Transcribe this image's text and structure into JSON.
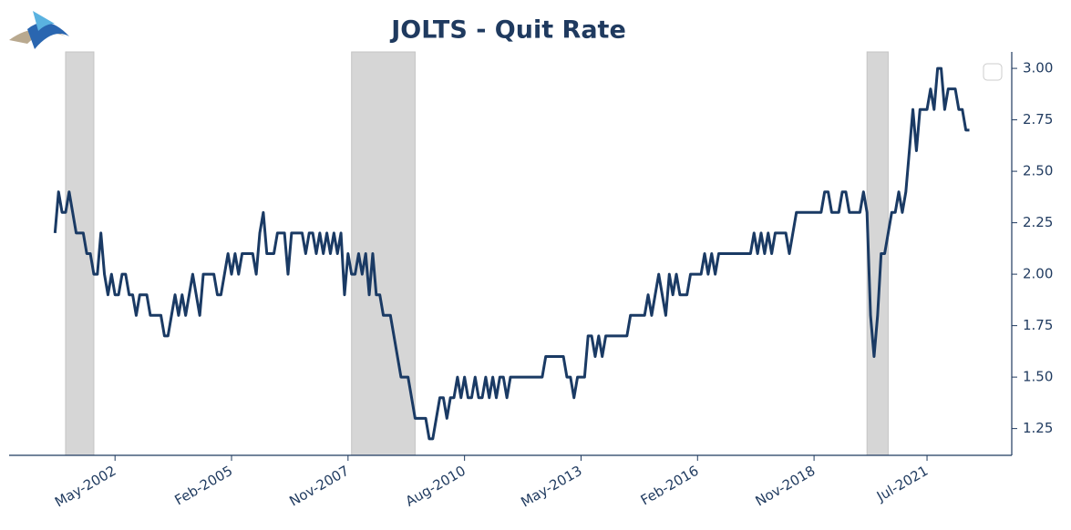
{
  "chart_data": {
    "type": "line",
    "title": "JOLTS - Quit Rate",
    "x": [
      "2000-12",
      "2001-01",
      "2001-02",
      "2001-03",
      "2001-04",
      "2001-05",
      "2001-06",
      "2001-07",
      "2001-08",
      "2001-09",
      "2001-10",
      "2001-11",
      "2001-12",
      "2002-01",
      "2002-02",
      "2002-03",
      "2002-04",
      "2002-05",
      "2002-06",
      "2002-07",
      "2002-08",
      "2002-09",
      "2002-10",
      "2002-11",
      "2002-12",
      "2003-01",
      "2003-02",
      "2003-03",
      "2003-04",
      "2003-05",
      "2003-06",
      "2003-07",
      "2003-08",
      "2003-09",
      "2003-10",
      "2003-11",
      "2003-12",
      "2004-01",
      "2004-02",
      "2004-03",
      "2004-04",
      "2004-05",
      "2004-06",
      "2004-07",
      "2004-08",
      "2004-09",
      "2004-10",
      "2004-11",
      "2004-12",
      "2005-01",
      "2005-02",
      "2005-03",
      "2005-04",
      "2005-05",
      "2005-06",
      "2005-07",
      "2005-08",
      "2005-09",
      "2005-10",
      "2005-11",
      "2005-12",
      "2006-01",
      "2006-02",
      "2006-03",
      "2006-04",
      "2006-05",
      "2006-06",
      "2006-07",
      "2006-08",
      "2006-09",
      "2006-10",
      "2006-11",
      "2006-12",
      "2007-01",
      "2007-02",
      "2007-03",
      "2007-04",
      "2007-05",
      "2007-06",
      "2007-07",
      "2007-08",
      "2007-09",
      "2007-10",
      "2007-11",
      "2007-12",
      "2008-01",
      "2008-02",
      "2008-03",
      "2008-04",
      "2008-05",
      "2008-06",
      "2008-07",
      "2008-08",
      "2008-09",
      "2008-10",
      "2008-11",
      "2008-12",
      "2009-01",
      "2009-02",
      "2009-03",
      "2009-04",
      "2009-05",
      "2009-06",
      "2009-07",
      "2009-08",
      "2009-09",
      "2009-10",
      "2009-11",
      "2009-12",
      "2010-01",
      "2010-02",
      "2010-03",
      "2010-04",
      "2010-05",
      "2010-06",
      "2010-07",
      "2010-08",
      "2010-09",
      "2010-10",
      "2010-11",
      "2010-12",
      "2011-01",
      "2011-02",
      "2011-03",
      "2011-04",
      "2011-05",
      "2011-06",
      "2011-07",
      "2011-08",
      "2011-09",
      "2011-10",
      "2011-11",
      "2011-12",
      "2012-01",
      "2012-02",
      "2012-03",
      "2012-04",
      "2012-05",
      "2012-06",
      "2012-07",
      "2012-08",
      "2012-09",
      "2012-10",
      "2012-11",
      "2012-12",
      "2013-01",
      "2013-02",
      "2013-03",
      "2013-04",
      "2013-05",
      "2013-06",
      "2013-07",
      "2013-08",
      "2013-09",
      "2013-10",
      "2013-11",
      "2013-12",
      "2014-01",
      "2014-02",
      "2014-03",
      "2014-04",
      "2014-05",
      "2014-06",
      "2014-07",
      "2014-08",
      "2014-09",
      "2014-10",
      "2014-11",
      "2014-12",
      "2015-01",
      "2015-02",
      "2015-03",
      "2015-04",
      "2015-05",
      "2015-06",
      "2015-07",
      "2015-08",
      "2015-09",
      "2015-10",
      "2015-11",
      "2015-12",
      "2016-01",
      "2016-02",
      "2016-03",
      "2016-04",
      "2016-05",
      "2016-06",
      "2016-07",
      "2016-08",
      "2016-09",
      "2016-10",
      "2016-11",
      "2016-12",
      "2017-01",
      "2017-02",
      "2017-03",
      "2017-04",
      "2017-05",
      "2017-06",
      "2017-07",
      "2017-08",
      "2017-09",
      "2017-10",
      "2017-11",
      "2017-12",
      "2018-01",
      "2018-02",
      "2018-03",
      "2018-04",
      "2018-05",
      "2018-06",
      "2018-07",
      "2018-08",
      "2018-09",
      "2018-10",
      "2018-11",
      "2018-12",
      "2019-01",
      "2019-02",
      "2019-03",
      "2019-04",
      "2019-05",
      "2019-06",
      "2019-07",
      "2019-08",
      "2019-09",
      "2019-10",
      "2019-11",
      "2019-12",
      "2020-01",
      "2020-02",
      "2020-03",
      "2020-04",
      "2020-05",
      "2020-06",
      "2020-07",
      "2020-08",
      "2020-09",
      "2020-10",
      "2020-11",
      "2020-12",
      "2021-01",
      "2021-02",
      "2021-03",
      "2021-04",
      "2021-05",
      "2021-06",
      "2021-07",
      "2021-08",
      "2021-09",
      "2021-10",
      "2021-11",
      "2021-12",
      "2022-01",
      "2022-02",
      "2022-03",
      "2022-04",
      "2022-05",
      "2022-06",
      "2022-07"
    ],
    "series": [
      {
        "color": "#1a3a64",
        "values": [
          2.2,
          2.4,
          2.3,
          2.3,
          2.4,
          2.3,
          2.2,
          2.2,
          2.2,
          2.1,
          2.1,
          2.0,
          2.0,
          2.2,
          2.0,
          1.9,
          2.0,
          1.9,
          1.9,
          2.0,
          2.0,
          1.9,
          1.9,
          1.8,
          1.9,
          1.9,
          1.9,
          1.8,
          1.8,
          1.8,
          1.8,
          1.7,
          1.7,
          1.8,
          1.9,
          1.8,
          1.9,
          1.8,
          1.9,
          2.0,
          1.9,
          1.8,
          2.0,
          2.0,
          2.0,
          2.0,
          1.9,
          1.9,
          2.0,
          2.1,
          2.0,
          2.1,
          2.0,
          2.1,
          2.1,
          2.1,
          2.1,
          2.0,
          2.2,
          2.3,
          2.1,
          2.1,
          2.1,
          2.2,
          2.2,
          2.2,
          2.0,
          2.2,
          2.2,
          2.2,
          2.2,
          2.1,
          2.2,
          2.2,
          2.1,
          2.2,
          2.1,
          2.2,
          2.1,
          2.2,
          2.1,
          2.2,
          1.9,
          2.1,
          2.0,
          2.0,
          2.1,
          2.0,
          2.1,
          1.9,
          2.1,
          1.9,
          1.9,
          1.8,
          1.8,
          1.8,
          1.7,
          1.6,
          1.5,
          1.5,
          1.5,
          1.4,
          1.3,
          1.3,
          1.3,
          1.3,
          1.2,
          1.2,
          1.3,
          1.4,
          1.4,
          1.3,
          1.4,
          1.4,
          1.5,
          1.4,
          1.5,
          1.4,
          1.4,
          1.5,
          1.4,
          1.4,
          1.5,
          1.4,
          1.5,
          1.4,
          1.5,
          1.5,
          1.4,
          1.5,
          1.5,
          1.5,
          1.5,
          1.5,
          1.5,
          1.5,
          1.5,
          1.5,
          1.5,
          1.6,
          1.6,
          1.6,
          1.6,
          1.6,
          1.6,
          1.5,
          1.5,
          1.4,
          1.5,
          1.5,
          1.5,
          1.7,
          1.7,
          1.6,
          1.7,
          1.6,
          1.7,
          1.7,
          1.7,
          1.7,
          1.7,
          1.7,
          1.7,
          1.8,
          1.8,
          1.8,
          1.8,
          1.8,
          1.9,
          1.8,
          1.9,
          2.0,
          1.9,
          1.8,
          2.0,
          1.9,
          2.0,
          1.9,
          1.9,
          1.9,
          2.0,
          2.0,
          2.0,
          2.0,
          2.1,
          2.0,
          2.1,
          2.0,
          2.1,
          2.1,
          2.1,
          2.1,
          2.1,
          2.1,
          2.1,
          2.1,
          2.1,
          2.1,
          2.2,
          2.1,
          2.2,
          2.1,
          2.2,
          2.1,
          2.2,
          2.2,
          2.2,
          2.2,
          2.1,
          2.2,
          2.3,
          2.3,
          2.3,
          2.3,
          2.3,
          2.3,
          2.3,
          2.3,
          2.4,
          2.4,
          2.3,
          2.3,
          2.3,
          2.4,
          2.4,
          2.3,
          2.3,
          2.3,
          2.3,
          2.4,
          2.3,
          1.8,
          1.6,
          1.8,
          2.1,
          2.1,
          2.2,
          2.3,
          2.3,
          2.4,
          2.3,
          2.4,
          2.6,
          2.8,
          2.6,
          2.8,
          2.8,
          2.8,
          2.9,
          2.8,
          3.0,
          3.0,
          2.8,
          2.9,
          2.9,
          2.9,
          2.8,
          2.8,
          2.7,
          2.7
        ]
      }
    ],
    "shaded_periods": [
      [
        "2001-03",
        "2001-11"
      ],
      [
        "2007-12",
        "2009-06"
      ],
      [
        "2020-02",
        "2020-08"
      ]
    ],
    "shade_color": "#d6d6d6",
    "xlim": [
      "1999-11",
      "2023-07"
    ],
    "xticks": [
      {
        "value": "2002-05",
        "label": "May-2002"
      },
      {
        "value": "2005-02",
        "label": "Feb-2005"
      },
      {
        "value": "2007-11",
        "label": "Nov-2007"
      },
      {
        "value": "2010-08",
        "label": "Aug-2010"
      },
      {
        "value": "2013-05",
        "label": "May-2013"
      },
      {
        "value": "2016-02",
        "label": "Feb-2016"
      },
      {
        "value": "2018-11",
        "label": "Nov-2018"
      },
      {
        "value": "2021-07",
        "label": "Jul-2021"
      }
    ],
    "ylim": [
      1.12,
      3.08
    ],
    "yticks": [
      {
        "value": 1.25,
        "label": "1.25"
      },
      {
        "value": 1.5,
        "label": "1.50"
      },
      {
        "value": 1.75,
        "label": "1.75"
      },
      {
        "value": 2,
        "label": "2.00"
      },
      {
        "value": 2.25,
        "label": "2.25"
      },
      {
        "value": 2.5,
        "label": "2.50"
      },
      {
        "value": 2.75,
        "label": "2.75"
      },
      {
        "value": 3,
        "label": "3.00"
      }
    ],
    "y_axis_side": "right",
    "grid": false
  }
}
